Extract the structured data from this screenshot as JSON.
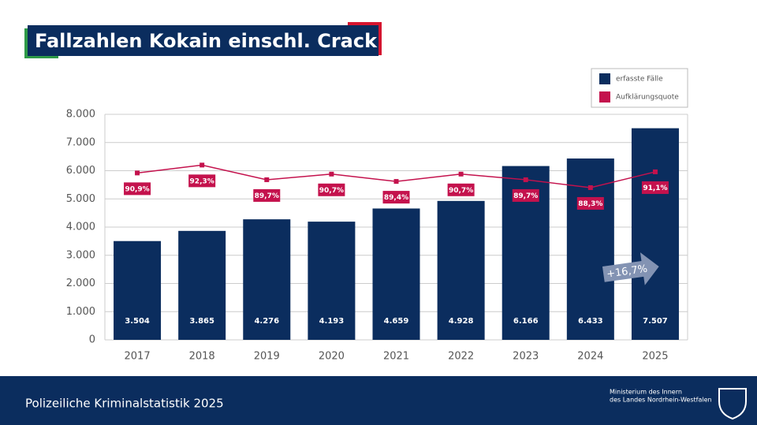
{
  "header": {
    "title": "Fallzahlen Kokain einschl. Crack"
  },
  "chart_data": {
    "type": "bar",
    "categories": [
      "2017",
      "2018",
      "2019",
      "2020",
      "2021",
      "2022",
      "2023",
      "2024",
      "2025"
    ],
    "series": [
      {
        "name": "erfasste Fälle",
        "color": "#0b2d5e",
        "values": [
          3504,
          3865,
          4276,
          4193,
          4659,
          4928,
          6166,
          6433,
          7507
        ],
        "value_labels": [
          "3.504",
          "3.865",
          "4.276",
          "4.193",
          "4.659",
          "4.928",
          "6.166",
          "6.433",
          "7.507"
        ]
      },
      {
        "name": "Aufklärungsquote",
        "type": "line",
        "axis": "y2",
        "color": "#c4124d",
        "values": [
          90.9,
          92.3,
          89.7,
          90.7,
          89.4,
          90.7,
          89.7,
          88.3,
          91.1
        ],
        "value_labels": [
          "90,9%",
          "92,3%",
          "89,7%",
          "90,7%",
          "89,4%",
          "90,7%",
          "89,7%",
          "88,3%",
          "91,1%"
        ]
      }
    ],
    "ylim": [
      0,
      8000
    ],
    "yticks": [
      0,
      {
        "value": 1000,
        "label": "1.000"
      },
      {
        "value": 2000,
        "label": "2.000"
      },
      {
        "value": 3000,
        "label": "3.000"
      },
      {
        "value": 4000,
        "label": "4.000"
      },
      {
        "value": 5000,
        "label": "5.000"
      },
      {
        "value": 6000,
        "label": "6.000"
      },
      {
        "value": 7000,
        "label": "7.000"
      },
      {
        "value": 8000,
        "label": "8.000"
      }
    ],
    "y2lim": [
      61.3,
      101.3
    ],
    "grid": true,
    "legend": "top-right",
    "annotations": [
      {
        "text": "+16,7%"
      }
    ]
  },
  "footer": {
    "title": "Polizeiliche Kriminalstatistik 2025",
    "ministry": [
      "Ministerium des Innern",
      "des Landes Nordrhein-Westfalen"
    ]
  }
}
